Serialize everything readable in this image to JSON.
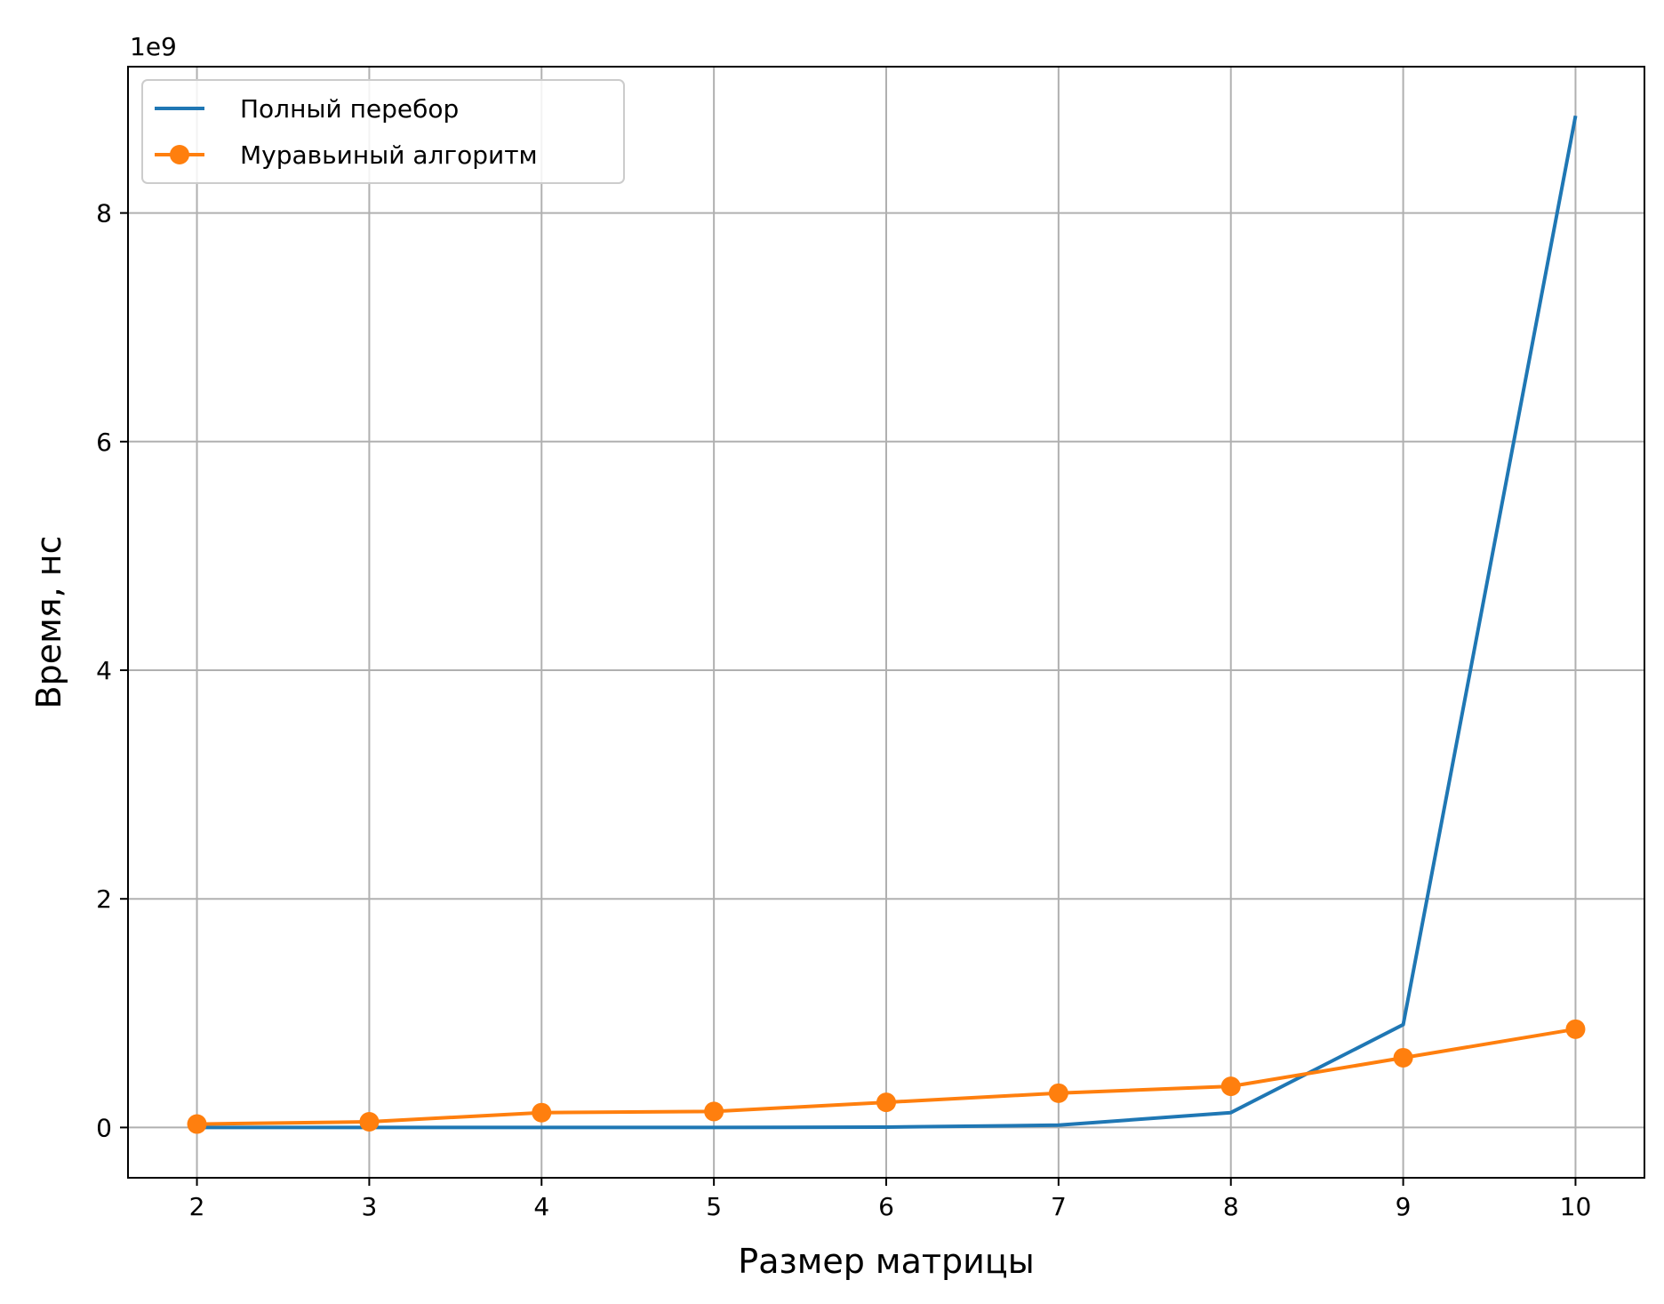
{
  "chart_data": {
    "type": "line",
    "title": "",
    "xlabel": "Размер матрицы",
    "ylabel": "Время, нс",
    "y_offset_label": "1e9",
    "x": [
      2,
      3,
      4,
      5,
      6,
      7,
      8,
      9,
      10
    ],
    "xlim": [
      1.6,
      10.4
    ],
    "ylim": [
      -0.44,
      9.28
    ],
    "y_scale_factor": 1000000000,
    "x_ticks": [
      2,
      3,
      4,
      5,
      6,
      7,
      8,
      9,
      10
    ],
    "y_ticks": [
      0,
      2,
      4,
      6,
      8
    ],
    "grid": true,
    "legend_position": "top-left",
    "series": [
      {
        "name": "Полный перебор",
        "color": "#1f77b4",
        "marker": "none",
        "values": [
          0.0,
          0.0,
          0.0,
          0.0,
          0.003,
          0.02,
          0.13,
          0.9,
          8.85
        ]
      },
      {
        "name": "Муравьиный алгоритм",
        "color": "#ff7f0e",
        "marker": "circle",
        "values": [
          0.03,
          0.05,
          0.13,
          0.14,
          0.22,
          0.3,
          0.36,
          0.61,
          0.86
        ]
      }
    ]
  }
}
